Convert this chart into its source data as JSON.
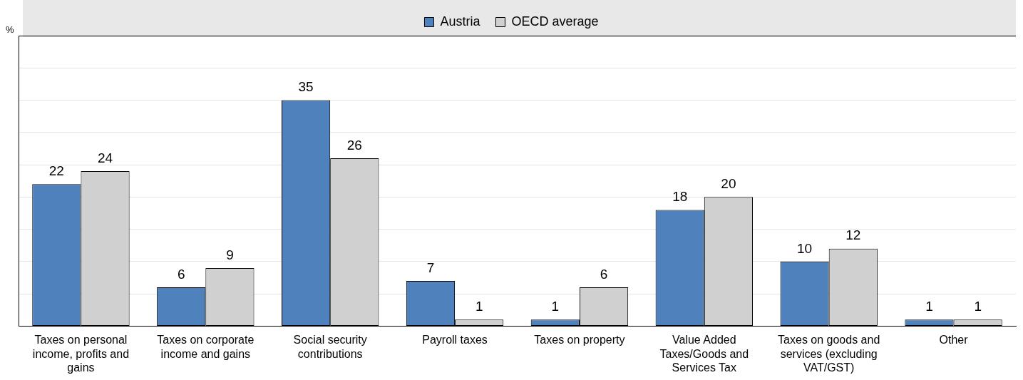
{
  "chart_data": {
    "type": "bar",
    "ylabel": "%",
    "categories": [
      "Taxes on personal income, profits and gains",
      "Taxes on corporate income and gains",
      "Social security contributions",
      "Payroll taxes",
      "Taxes on property",
      "Value Added Taxes/Goods and Services Tax",
      "Taxes on goods and services (excluding VAT/GST)",
      "Other"
    ],
    "series": [
      {
        "name": "Austria",
        "color": "#4f81bd",
        "values": [
          22,
          6,
          35,
          7,
          1,
          18,
          10,
          1
        ]
      },
      {
        "name": "OECD average",
        "color": "#d0d0d0",
        "values": [
          24,
          9,
          26,
          1,
          6,
          20,
          12,
          1
        ]
      }
    ],
    "ylim": [
      0,
      45
    ],
    "grid": "y",
    "legend": "top",
    "data_labels": true,
    "tick_labels": "x"
  }
}
